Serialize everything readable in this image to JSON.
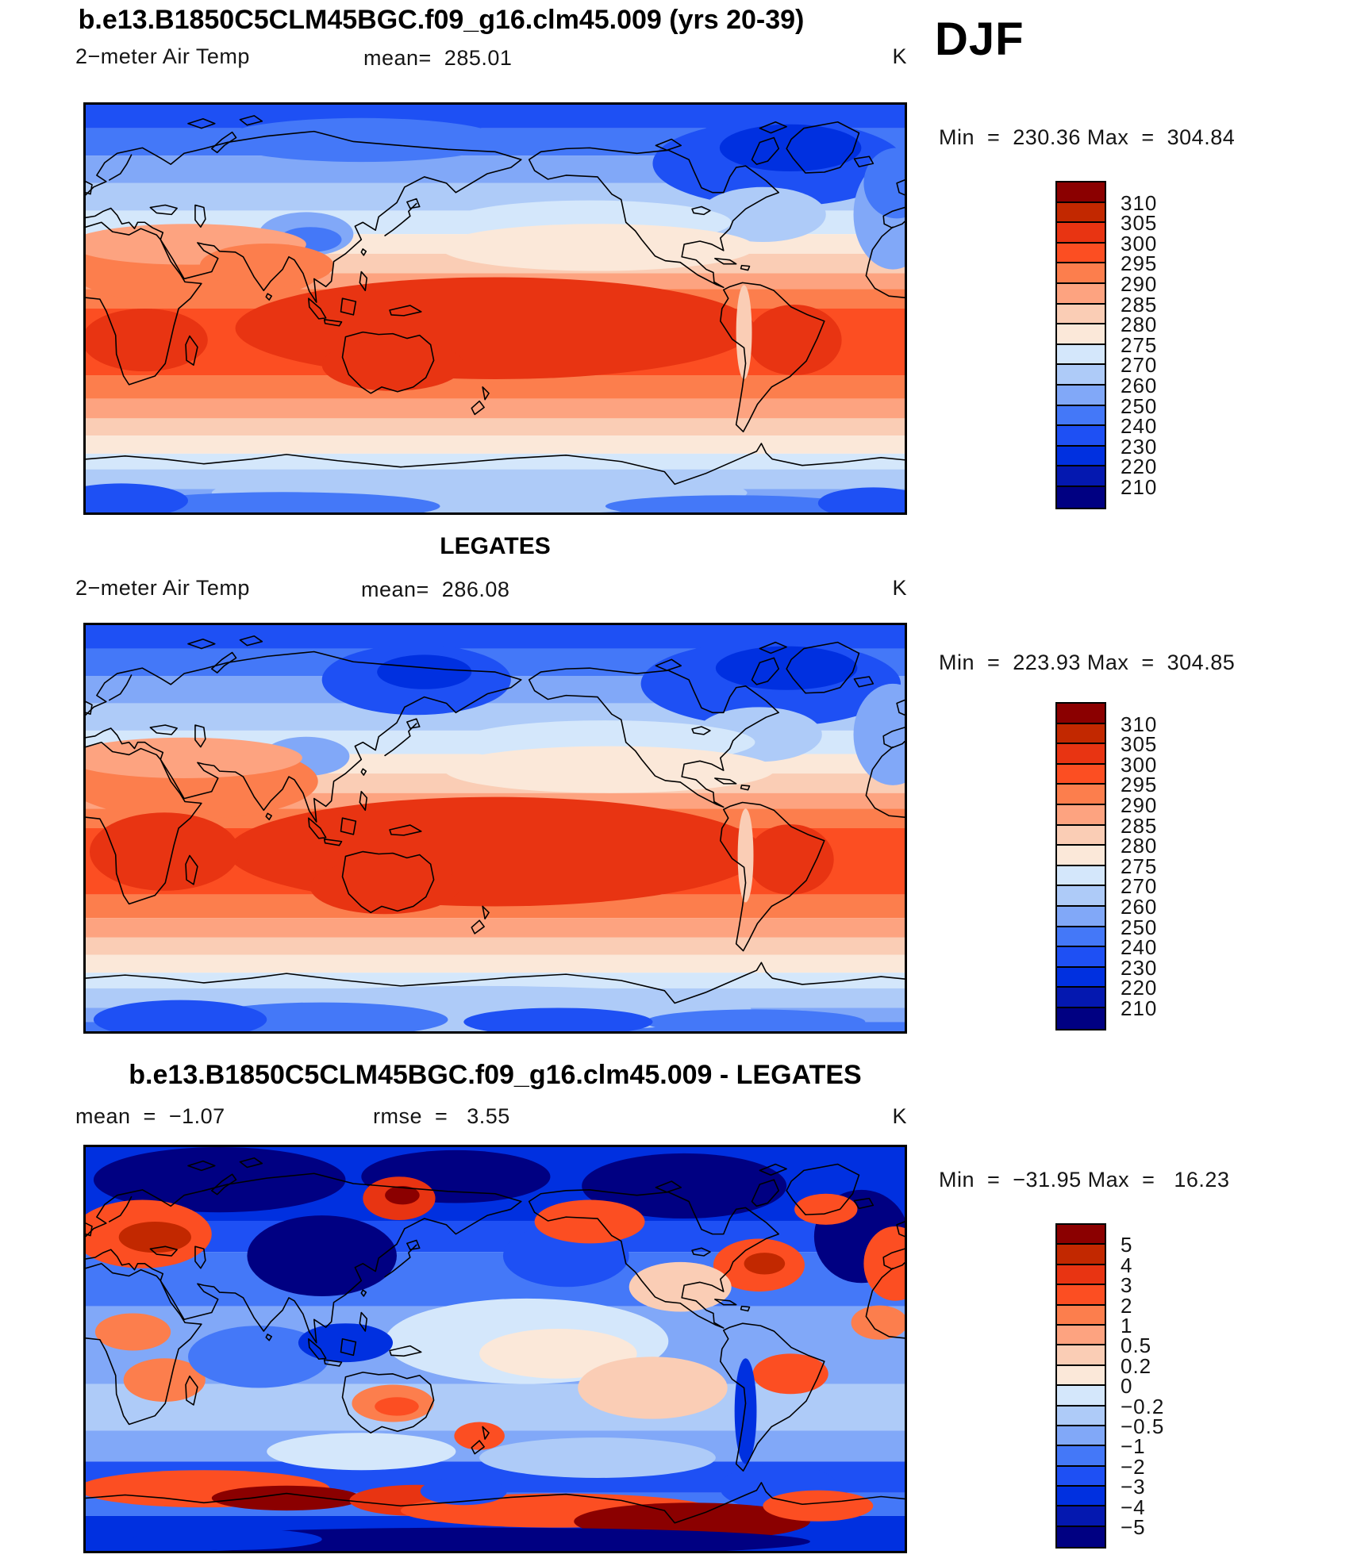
{
  "figure": {
    "season": "DJF",
    "main_title": "b.e13.B1850C5CLM45BGC.f09_g16.clm45.009 (yrs 20-39)"
  },
  "panels": [
    {
      "name": "model",
      "field": "2−meter Air Temp",
      "mean_text": "mean=  285.01",
      "units": "K",
      "minmax_text": "Min  =  230.36 Max  =  304.84",
      "colorbar_labels": [
        "310",
        "305",
        "300",
        "295",
        "290",
        "285",
        "280",
        "275",
        "270",
        "260",
        "250",
        "240",
        "230",
        "220",
        "210"
      ]
    },
    {
      "name": "obs",
      "title": "LEGATES",
      "field": "2−meter Air Temp",
      "mean_text": "mean=  286.08",
      "units": "K",
      "minmax_text": "Min  =  223.93 Max  =  304.85",
      "colorbar_labels": [
        "310",
        "305",
        "300",
        "295",
        "290",
        "285",
        "280",
        "275",
        "270",
        "260",
        "250",
        "240",
        "230",
        "220",
        "210"
      ]
    },
    {
      "name": "difference",
      "title": "b.e13.B1850C5CLM45BGC.f09_g16.clm45.009 - LEGATES",
      "mean_text": "mean  =  −1.07",
      "rmse_text": "rmse  =   3.55",
      "units": "K",
      "minmax_text": "Min  =  −31.95 Max  =   16.23",
      "colorbar_labels": [
        "5",
        "4",
        "3",
        "2",
        "1",
        "0.5",
        "0.2",
        "0",
        "−0.2",
        "−0.5",
        "−1",
        "−2",
        "−3",
        "−4",
        "−5"
      ]
    }
  ],
  "colorbar_colors_top_to_bottom": [
    "#8B0000",
    "#C22800",
    "#E83412",
    "#FC4E22",
    "#FC7E4D",
    "#FDA380",
    "#FACDB5",
    "#FBE8D9",
    "#D4E7FB",
    "#AECBF8",
    "#81A8F8",
    "#4478F8",
    "#1E50F4",
    "#0030E0",
    "#0418B0",
    "#000082"
  ],
  "chart_data": {
    "type": "heatmap",
    "subtype": "global filled-contour maps (equirectangular, 0E left edge)",
    "season": "DJF",
    "variable": "2-meter Air Temp",
    "units": "K",
    "grid": false,
    "legend_position": "right vertical discrete colorbar per panel",
    "panels": [
      {
        "title": "b.e13.B1850C5CLM45BGC.f09_g16.clm45.009 (yrs 20-39)",
        "mean": 285.01,
        "min": 230.36,
        "max": 304.84,
        "contour_levels": [
          210,
          220,
          230,
          240,
          250,
          260,
          270,
          275,
          280,
          285,
          290,
          295,
          300,
          305,
          310
        ]
      },
      {
        "title": "LEGATES",
        "mean": 286.08,
        "min": 223.93,
        "max": 304.85,
        "contour_levels": [
          210,
          220,
          230,
          240,
          250,
          260,
          270,
          275,
          280,
          285,
          290,
          295,
          300,
          305,
          310
        ]
      },
      {
        "title": "b.e13.B1850C5CLM45BGC.f09_g16.clm45.009 - LEGATES",
        "mean": -1.07,
        "rmse": 3.55,
        "min": -31.95,
        "max": 16.23,
        "contour_levels": [
          -5,
          -4,
          -3,
          -2,
          -1,
          -0.5,
          -0.2,
          0,
          0.2,
          0.5,
          1,
          2,
          3,
          4,
          5
        ]
      }
    ],
    "palette_top_to_bottom": [
      "#8B0000",
      "#C22800",
      "#E83412",
      "#FC4E22",
      "#FC7E4D",
      "#FDA380",
      "#FACDB5",
      "#FBE8D9",
      "#D4E7FB",
      "#AECBF8",
      "#81A8F8",
      "#4478F8",
      "#1E50F4",
      "#0030E0",
      "#0418B0",
      "#000082"
    ]
  }
}
